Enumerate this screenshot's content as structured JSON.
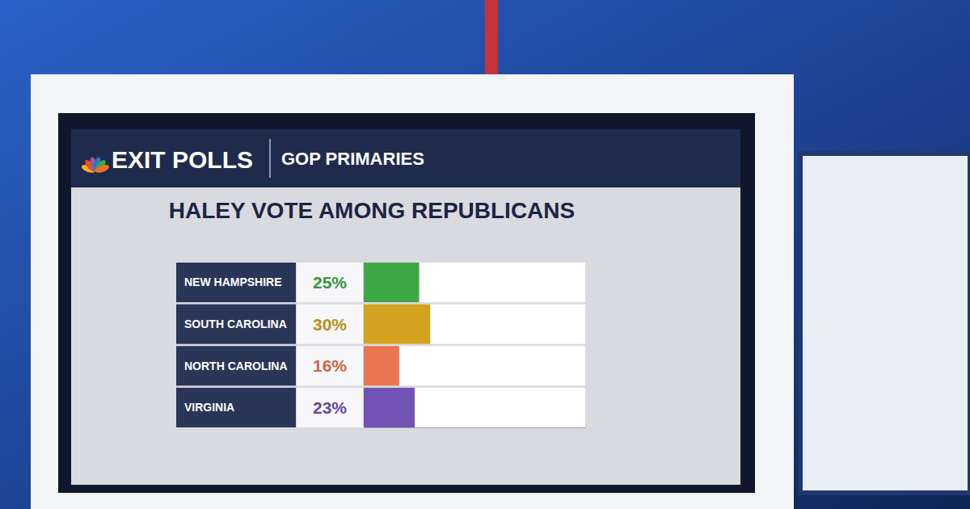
{
  "chart_data": {
    "type": "bar",
    "orientation": "horizontal",
    "annotations": [
      "EXIT POLLS",
      "GOP PRIMARIES"
    ],
    "title": "HALEY VOTE AMONG REPUBLICANS",
    "categories": [
      "NEW HAMPSHIRE",
      "SOUTH CAROLINA",
      "NORTH CAROLINA",
      "VIRGINIA"
    ],
    "values": [
      25,
      30,
      16,
      23
    ],
    "value_labels": [
      "25%",
      "30%",
      "16%",
      "23%"
    ],
    "colors": [
      "#3ea844",
      "#d4a21f",
      "#ea7550",
      "#7352b5"
    ],
    "xlim": [
      0,
      100
    ],
    "grid": false,
    "data_labels": true,
    "tick_labels": "y"
  }
}
